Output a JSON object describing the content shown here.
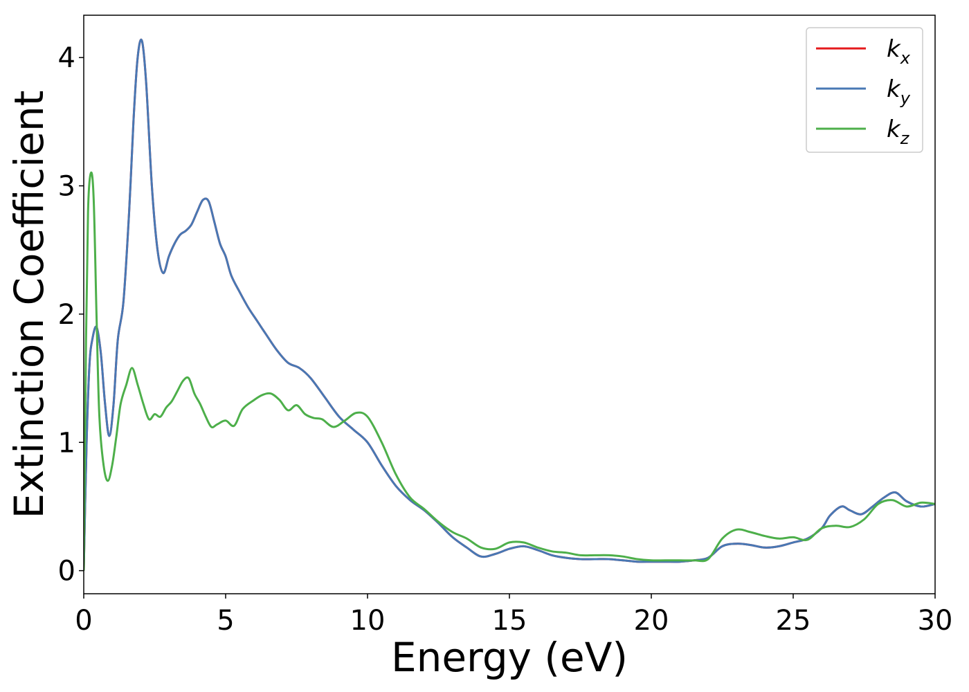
{
  "chart_data": {
    "type": "line",
    "title": "",
    "xlabel": "Energy (eV)",
    "ylabel": "Extinction Coefficient",
    "xlim": [
      0,
      30
    ],
    "ylim": [
      -0.18,
      4.33
    ],
    "xticks": [
      0,
      5,
      10,
      15,
      20,
      25,
      30
    ],
    "yticks": [
      0,
      1,
      2,
      3,
      4
    ],
    "grid": false,
    "legend_position": "top-right",
    "series": [
      {
        "name": "k_x",
        "label_base": "k",
        "label_sub": "x",
        "color": "#e41a1c",
        "x": [
          0,
          0.1,
          0.2,
          0.3,
          0.45,
          0.6,
          0.75,
          0.9,
          1.05,
          1.2,
          1.4,
          1.6,
          1.75,
          1.9,
          2.05,
          2.2,
          2.4,
          2.6,
          2.8,
          3.0,
          3.2,
          3.4,
          3.6,
          3.8,
          4.0,
          4.2,
          4.4,
          4.6,
          4.8,
          5.0,
          5.2,
          5.5,
          5.8,
          6.1,
          6.4,
          6.8,
          7.2,
          7.6,
          8.0,
          8.5,
          9.0,
          9.5,
          10.0,
          10.5,
          11.0,
          11.5,
          12.0,
          12.5,
          13.0,
          13.5,
          14.0,
          14.5,
          15.0,
          15.5,
          16.0,
          16.5,
          17.0,
          17.5,
          18.0,
          18.5,
          19.0,
          19.5,
          20.0,
          20.5,
          21.0,
          21.5,
          22.0,
          22.5,
          23.0,
          23.5,
          24.0,
          24.5,
          25.0,
          25.5,
          26.0,
          26.3,
          26.7,
          27.0,
          27.4,
          27.8,
          28.2,
          28.6,
          29.0,
          29.5,
          30.0
        ],
        "y": [
          0,
          1.0,
          1.6,
          1.8,
          1.9,
          1.7,
          1.3,
          1.05,
          1.3,
          1.8,
          2.1,
          2.8,
          3.5,
          4.0,
          4.13,
          3.8,
          3.0,
          2.5,
          2.32,
          2.45,
          2.55,
          2.62,
          2.65,
          2.7,
          2.8,
          2.89,
          2.88,
          2.72,
          2.55,
          2.45,
          2.3,
          2.17,
          2.05,
          1.95,
          1.85,
          1.72,
          1.62,
          1.58,
          1.5,
          1.35,
          1.2,
          1.1,
          1.0,
          0.82,
          0.66,
          0.55,
          0.47,
          0.37,
          0.26,
          0.18,
          0.11,
          0.13,
          0.17,
          0.19,
          0.16,
          0.12,
          0.1,
          0.09,
          0.09,
          0.09,
          0.08,
          0.07,
          0.07,
          0.07,
          0.07,
          0.08,
          0.1,
          0.19,
          0.21,
          0.2,
          0.18,
          0.19,
          0.22,
          0.25,
          0.33,
          0.43,
          0.5,
          0.47,
          0.44,
          0.5,
          0.57,
          0.61,
          0.54,
          0.5,
          0.52
        ]
      },
      {
        "name": "k_y",
        "label_base": "k",
        "label_sub": "y",
        "color": "#4878b4",
        "x": [
          0,
          0.1,
          0.2,
          0.3,
          0.45,
          0.6,
          0.75,
          0.9,
          1.05,
          1.2,
          1.4,
          1.6,
          1.75,
          1.9,
          2.05,
          2.2,
          2.4,
          2.6,
          2.8,
          3.0,
          3.2,
          3.4,
          3.6,
          3.8,
          4.0,
          4.2,
          4.4,
          4.6,
          4.8,
          5.0,
          5.2,
          5.5,
          5.8,
          6.1,
          6.4,
          6.8,
          7.2,
          7.6,
          8.0,
          8.5,
          9.0,
          9.5,
          10.0,
          10.5,
          11.0,
          11.5,
          12.0,
          12.5,
          13.0,
          13.5,
          14.0,
          14.5,
          15.0,
          15.5,
          16.0,
          16.5,
          17.0,
          17.5,
          18.0,
          18.5,
          19.0,
          19.5,
          20.0,
          20.5,
          21.0,
          21.5,
          22.0,
          22.5,
          23.0,
          23.5,
          24.0,
          24.5,
          25.0,
          25.5,
          26.0,
          26.3,
          26.7,
          27.0,
          27.4,
          27.8,
          28.2,
          28.6,
          29.0,
          29.5,
          30.0
        ],
        "y": [
          0,
          1.0,
          1.6,
          1.8,
          1.9,
          1.7,
          1.3,
          1.05,
          1.3,
          1.8,
          2.1,
          2.8,
          3.5,
          4.0,
          4.13,
          3.8,
          3.0,
          2.5,
          2.32,
          2.45,
          2.55,
          2.62,
          2.65,
          2.7,
          2.8,
          2.89,
          2.88,
          2.72,
          2.55,
          2.45,
          2.3,
          2.17,
          2.05,
          1.95,
          1.85,
          1.72,
          1.62,
          1.58,
          1.5,
          1.35,
          1.2,
          1.1,
          1.0,
          0.82,
          0.66,
          0.55,
          0.47,
          0.37,
          0.26,
          0.18,
          0.11,
          0.13,
          0.17,
          0.19,
          0.16,
          0.12,
          0.1,
          0.09,
          0.09,
          0.09,
          0.08,
          0.07,
          0.07,
          0.07,
          0.07,
          0.08,
          0.1,
          0.19,
          0.21,
          0.2,
          0.18,
          0.19,
          0.22,
          0.25,
          0.33,
          0.43,
          0.5,
          0.47,
          0.44,
          0.5,
          0.57,
          0.61,
          0.54,
          0.5,
          0.52
        ]
      },
      {
        "name": "k_z",
        "label_base": "k",
        "label_sub": "z",
        "color": "#4daf4a",
        "x": [
          0,
          0.08,
          0.15,
          0.25,
          0.35,
          0.45,
          0.55,
          0.7,
          0.85,
          1.0,
          1.15,
          1.3,
          1.5,
          1.7,
          1.9,
          2.1,
          2.3,
          2.5,
          2.7,
          2.9,
          3.1,
          3.3,
          3.5,
          3.7,
          3.9,
          4.1,
          4.3,
          4.5,
          4.7,
          5.0,
          5.3,
          5.6,
          6.0,
          6.3,
          6.6,
          6.9,
          7.2,
          7.5,
          7.8,
          8.1,
          8.4,
          8.8,
          9.2,
          9.6,
          10.0,
          10.5,
          11.0,
          11.5,
          12.0,
          12.5,
          13.0,
          13.5,
          14.0,
          14.5,
          15.0,
          15.5,
          16.0,
          16.5,
          17.0,
          17.5,
          18.0,
          18.5,
          19.0,
          19.5,
          20.0,
          20.5,
          21.0,
          21.5,
          22.0,
          22.5,
          23.0,
          23.5,
          24.0,
          24.5,
          25.0,
          25.5,
          26.0,
          26.5,
          27.0,
          27.5,
          28.0,
          28.5,
          29.0,
          29.5,
          30.0
        ],
        "y": [
          0,
          1.8,
          2.8,
          3.1,
          2.9,
          2.0,
          1.2,
          0.82,
          0.7,
          0.82,
          1.05,
          1.3,
          1.45,
          1.58,
          1.45,
          1.3,
          1.18,
          1.22,
          1.2,
          1.27,
          1.32,
          1.4,
          1.48,
          1.5,
          1.38,
          1.3,
          1.2,
          1.12,
          1.14,
          1.17,
          1.13,
          1.26,
          1.33,
          1.37,
          1.38,
          1.33,
          1.25,
          1.29,
          1.22,
          1.19,
          1.18,
          1.12,
          1.17,
          1.23,
          1.2,
          1.0,
          0.75,
          0.57,
          0.48,
          0.38,
          0.3,
          0.25,
          0.18,
          0.17,
          0.22,
          0.22,
          0.18,
          0.15,
          0.14,
          0.12,
          0.12,
          0.12,
          0.11,
          0.09,
          0.08,
          0.08,
          0.08,
          0.08,
          0.09,
          0.25,
          0.32,
          0.3,
          0.27,
          0.25,
          0.26,
          0.24,
          0.33,
          0.35,
          0.34,
          0.4,
          0.52,
          0.55,
          0.5,
          0.53,
          0.52
        ]
      }
    ]
  }
}
